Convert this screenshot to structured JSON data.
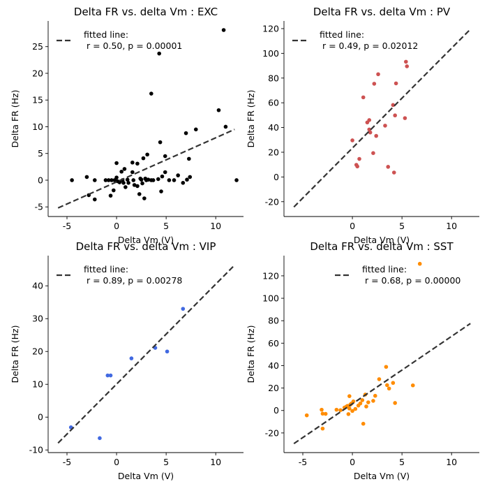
{
  "figure": {
    "background": "#ffffff"
  },
  "chart_data": [
    {
      "type": "scatter",
      "title": "Delta FR vs. delta Vm : EXC",
      "xlabel": "Delta Vm (V)",
      "ylabel": "Delta FR (Hz)",
      "xlim": [
        -6.9,
        12.8
      ],
      "ylim": [
        -6.8,
        29.8
      ],
      "xticks": [
        -5,
        0,
        5,
        10
      ],
      "yticks": [
        -5,
        0,
        5,
        10,
        15,
        20,
        25
      ],
      "color": "#000000",
      "legend": {
        "placement": "top-left",
        "label_line1": "fitted line:",
        "label_line2": " r = 0.50, p = 0.00001"
      },
      "fit_line": {
        "x": [
          -5.9,
          11.9
        ],
        "y": [
          -5.2,
          9.5
        ]
      },
      "points": [
        [
          -4.5,
          0
        ],
        [
          -3,
          0.6
        ],
        [
          -2.8,
          -2.8
        ],
        [
          -2.2,
          0
        ],
        [
          -2.2,
          -3.6
        ],
        [
          -1.1,
          0
        ],
        [
          -0.8,
          0
        ],
        [
          -0.5,
          0
        ],
        [
          -0.6,
          -2.9
        ],
        [
          -0.3,
          -1.9
        ],
        [
          -0.2,
          0
        ],
        [
          0,
          3.2
        ],
        [
          0,
          0.5
        ],
        [
          0.1,
          -0.2
        ],
        [
          0.3,
          -0.4
        ],
        [
          0.5,
          1.6
        ],
        [
          0.6,
          0
        ],
        [
          0.7,
          -0.5
        ],
        [
          0.8,
          2.1
        ],
        [
          0.9,
          -1.3
        ],
        [
          1.1,
          0.1
        ],
        [
          1.2,
          -0.5
        ],
        [
          1.6,
          3.3
        ],
        [
          1.6,
          1.5
        ],
        [
          1.7,
          0
        ],
        [
          1.8,
          -0.9
        ],
        [
          2.1,
          3.1
        ],
        [
          2.1,
          -1.1
        ],
        [
          2.3,
          -2.6
        ],
        [
          2.4,
          0.3
        ],
        [
          2.5,
          0.1
        ],
        [
          2.6,
          -0.6
        ],
        [
          2.7,
          4.1
        ],
        [
          2.8,
          -3.4
        ],
        [
          2.9,
          0.3
        ],
        [
          3.0,
          0
        ],
        [
          3.1,
          4.8
        ],
        [
          3.2,
          0.1
        ],
        [
          3.5,
          0
        ],
        [
          3.5,
          16.2
        ],
        [
          3.7,
          0
        ],
        [
          4.2,
          0.2
        ],
        [
          4.3,
          23.7
        ],
        [
          4.4,
          7.1
        ],
        [
          4.5,
          -2.1
        ],
        [
          4.6,
          0.7
        ],
        [
          4.9,
          1.5
        ],
        [
          4.9,
          4.5
        ],
        [
          5.3,
          0
        ],
        [
          5.8,
          0
        ],
        [
          6.2,
          0.9
        ],
        [
          6.7,
          -0.5
        ],
        [
          7.0,
          8.8
        ],
        [
          7.1,
          0.1
        ],
        [
          7.3,
          4.0
        ],
        [
          7.4,
          0.6
        ],
        [
          8.0,
          9.5
        ],
        [
          10.3,
          13.1
        ],
        [
          10.8,
          28.1
        ],
        [
          11.0,
          10.0
        ],
        [
          12.1,
          0
        ]
      ]
    },
    {
      "type": "scatter",
      "title": "Delta FR vs. delta Vm : PV",
      "xlabel": "Delta Vm (V)",
      "ylabel": "Delta FR (Hz)",
      "xlim": [
        -6.9,
        12.8
      ],
      "ylim": [
        -32.0,
        126.2
      ],
      "xticks": [
        0,
        5,
        10
      ],
      "yticks": [
        -20,
        0,
        20,
        40,
        60,
        80,
        100,
        120
      ],
      "color": "#cd5252",
      "legend": {
        "placement": "top-left",
        "label_line1": "fitted line:",
        "label_line2": " r = 0.49, p = 0.02012"
      },
      "fit_line": {
        "x": [
          -5.9,
          11.9
        ],
        "y": [
          -24.3,
          119.5
        ]
      },
      "points": [
        [
          0,
          29.6
        ],
        [
          0.4,
          9.8
        ],
        [
          0.5,
          8.5
        ],
        [
          0.7,
          14.6
        ],
        [
          1.1,
          64.4
        ],
        [
          1.5,
          44.1
        ],
        [
          1.7,
          46
        ],
        [
          1.7,
          38.4
        ],
        [
          1.8,
          36
        ],
        [
          2.1,
          19.3
        ],
        [
          2.2,
          75.4
        ],
        [
          2.4,
          33.2
        ],
        [
          2.6,
          83.1
        ],
        [
          3.3,
          41.5
        ],
        [
          3.6,
          8.2
        ],
        [
          4.1,
          58.2
        ],
        [
          4.2,
          3.6
        ],
        [
          4.3,
          49.8
        ],
        [
          4.4,
          75.7
        ],
        [
          5.3,
          47.6
        ],
        [
          5.4,
          93.2
        ],
        [
          5.5,
          89.5
        ]
      ]
    },
    {
      "type": "scatter",
      "title": "Delta FR vs. delta Vm : VIP",
      "xlabel": "Delta Vm (V)",
      "ylabel": "Delta FR (Hz)",
      "xlim": [
        -6.9,
        12.8
      ],
      "ylim": [
        -10.8,
        49.2
      ],
      "xticks": [
        -5,
        0,
        5,
        10
      ],
      "yticks": [
        -10,
        0,
        10,
        20,
        30,
        40
      ],
      "color": "#4169e1",
      "legend": {
        "placement": "top-left",
        "label_line1": "fitted line:",
        "label_line2": " r = 0.89, p = 0.00278"
      },
      "fit_line": {
        "x": [
          -5.9,
          11.9
        ],
        "y": [
          -7.9,
          46.3
        ]
      },
      "points": [
        [
          -4.6,
          -3.1
        ],
        [
          -1.7,
          -6.4
        ],
        [
          -0.9,
          12.7
        ],
        [
          -0.6,
          12.7
        ],
        [
          1.5,
          17.9
        ],
        [
          3.9,
          21.1
        ],
        [
          5.1,
          20.0
        ],
        [
          6.7,
          33.0
        ]
      ]
    },
    {
      "type": "scatter",
      "title": "Delta FR vs. delta Vm : SST",
      "xlabel": "Delta Vm (V)",
      "ylabel": "Delta FR (Hz)",
      "xlim": [
        -6.9,
        12.8
      ],
      "ylim": [
        -37.5,
        138.0
      ],
      "xticks": [
        -5,
        0,
        5,
        10
      ],
      "yticks": [
        -20,
        0,
        20,
        40,
        60,
        80,
        100,
        120
      ],
      "color": "#ff8c00",
      "legend": {
        "placement": "top-right",
        "label_line1": "fitted line:",
        "label_line2": " r = 0.68, p = 0.00000"
      },
      "fit_line": {
        "x": [
          -5.9,
          11.9
        ],
        "y": [
          -29.5,
          77.5
        ]
      },
      "points": [
        [
          -4.6,
          -4.3
        ],
        [
          -3.1,
          0.7
        ],
        [
          -3.0,
          -2.8
        ],
        [
          -3.0,
          -16.1
        ],
        [
          -2.7,
          -3.0
        ],
        [
          -1.6,
          0.7
        ],
        [
          -1.2,
          0.3
        ],
        [
          -0.8,
          2.6
        ],
        [
          -0.6,
          3.5
        ],
        [
          -0.5,
          4.1
        ],
        [
          -0.4,
          -3.2
        ],
        [
          -0.3,
          12.8
        ],
        [
          -0.3,
          1.8
        ],
        [
          -0.2,
          5.3
        ],
        [
          -0.1,
          6.2
        ],
        [
          0,
          -0.4
        ],
        [
          0.1,
          8.1
        ],
        [
          0.3,
          1.4
        ],
        [
          0.6,
          4.4
        ],
        [
          0.8,
          6.3
        ],
        [
          1.0,
          9.2
        ],
        [
          1.1,
          -11.8
        ],
        [
          1.3,
          14.2
        ],
        [
          1.4,
          3.6
        ],
        [
          1.6,
          7.3
        ],
        [
          2.1,
          8.6
        ],
        [
          2.3,
          13.1
        ],
        [
          2.7,
          27.9
        ],
        [
          3.4,
          38.9
        ],
        [
          3.5,
          22.6
        ],
        [
          3.7,
          19.6
        ],
        [
          4.1,
          24.6
        ],
        [
          4.3,
          6.7
        ],
        [
          6.1,
          22.4
        ],
        [
          6.8,
          130.7
        ]
      ]
    }
  ]
}
